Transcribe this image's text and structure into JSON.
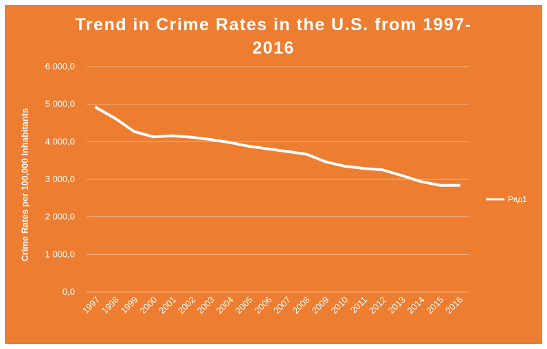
{
  "chart_data": {
    "type": "line",
    "title_line1": "Trend in Crime Rates in the U.S. from 1997-",
    "title_line2": "2016",
    "xlabel": "",
    "ylabel": "Crime Rates per 100,000 Inhabitants",
    "ylim": [
      0,
      6000
    ],
    "yticks": [
      "0,0",
      "1 000,0",
      "2 000,0",
      "3 000,0",
      "4 000,0",
      "5 000,0",
      "6 000,0"
    ],
    "categories": [
      "1997",
      "1998",
      "1999",
      "2000",
      "2001",
      "2002",
      "2003",
      "2004",
      "2005",
      "2006",
      "2007",
      "2008",
      "2009",
      "2010",
      "2011",
      "2012",
      "2013",
      "2014",
      "2015",
      "2016"
    ],
    "grid": true,
    "legend_position": "right",
    "series": [
      {
        "name": "Ряд1",
        "color": "#ffffff",
        "values": [
          4910,
          4620,
          4270,
          4130,
          4160,
          4120,
          4060,
          3980,
          3880,
          3810,
          3740,
          3670,
          3470,
          3350,
          3290,
          3250,
          3100,
          2940,
          2840,
          2840
        ]
      }
    ]
  }
}
